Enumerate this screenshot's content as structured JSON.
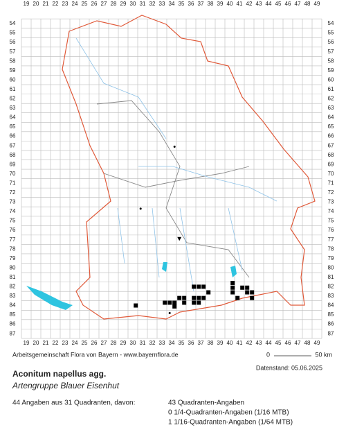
{
  "grid": {
    "columns": [
      19,
      20,
      21,
      22,
      23,
      24,
      25,
      26,
      27,
      28,
      29,
      30,
      31,
      32,
      33,
      34,
      35,
      36,
      37,
      38,
      39,
      40,
      41,
      42,
      43,
      44,
      45,
      46,
      47,
      48,
      49
    ],
    "rows": [
      54,
      55,
      56,
      57,
      58,
      59,
      60,
      61,
      62,
      63,
      64,
      65,
      66,
      67,
      68,
      69,
      70,
      71,
      72,
      73,
      74,
      75,
      76,
      77,
      78,
      79,
      80,
      81,
      82,
      83,
      84,
      85,
      86,
      87
    ]
  },
  "credit": "Arbeitsgemeinschaft Flora von Bayern - www.bayernflora.de",
  "scale": {
    "start": "0",
    "end": "50 km"
  },
  "date": "Datenstand: 05.06.2025",
  "species": {
    "name": "Aconitum napellus agg.",
    "group": "Artengruppe Blauer Eisenhut"
  },
  "summary": {
    "total": "44 Angaben aus 31 Quadranten, davon:",
    "counts": [
      "43 Quadranten-Angaben",
      "0 1/4-Quadranten-Angaben (1/16 MTB)",
      "1 1/16-Quadranten-Angaben (1/64 MTB)"
    ]
  },
  "records": [
    {
      "symbol": "square",
      "x": 30.3,
      "y": 84.0
    },
    {
      "symbol": "square",
      "x": 33.3,
      "y": 83.7
    },
    {
      "symbol": "square",
      "x": 33.8,
      "y": 83.7
    },
    {
      "symbol": "square",
      "x": 34.3,
      "y": 83.7
    },
    {
      "symbol": "square",
      "x": 34.3,
      "y": 84.1
    },
    {
      "symbol": "square",
      "x": 34.8,
      "y": 83.2
    },
    {
      "symbol": "square",
      "x": 35.3,
      "y": 83.2
    },
    {
      "symbol": "square",
      "x": 35.3,
      "y": 83.7
    },
    {
      "symbol": "square",
      "x": 36.3,
      "y": 82.0
    },
    {
      "symbol": "square",
      "x": 36.8,
      "y": 82.0
    },
    {
      "symbol": "square",
      "x": 37.3,
      "y": 82.0
    },
    {
      "symbol": "square",
      "x": 36.3,
      "y": 83.2
    },
    {
      "symbol": "square",
      "x": 36.8,
      "y": 83.2
    },
    {
      "symbol": "square",
      "x": 37.3,
      "y": 83.2
    },
    {
      "symbol": "square",
      "x": 36.3,
      "y": 83.7
    },
    {
      "symbol": "square",
      "x": 36.8,
      "y": 83.7
    },
    {
      "symbol": "square",
      "x": 37.8,
      "y": 82.6
    },
    {
      "symbol": "square",
      "x": 40.3,
      "y": 81.6
    },
    {
      "symbol": "square",
      "x": 40.3,
      "y": 82.1
    },
    {
      "symbol": "square",
      "x": 40.3,
      "y": 82.6
    },
    {
      "symbol": "square",
      "x": 40.8,
      "y": 83.2
    },
    {
      "symbol": "square",
      "x": 41.3,
      "y": 82.1
    },
    {
      "symbol": "square",
      "x": 41.8,
      "y": 82.1
    },
    {
      "symbol": "square",
      "x": 41.8,
      "y": 82.6
    },
    {
      "symbol": "square",
      "x": 42.3,
      "y": 83.2
    },
    {
      "symbol": "square",
      "x": 42.3,
      "y": 82.6
    },
    {
      "symbol": "dot",
      "x": 34.3,
      "y": 67.1
    },
    {
      "symbol": "dot",
      "x": 30.8,
      "y": 73.7
    },
    {
      "symbol": "dot",
      "x": 33.8,
      "y": 84.8
    },
    {
      "symbol": "triangle",
      "x": 34.8,
      "y": 76.9
    }
  ]
}
